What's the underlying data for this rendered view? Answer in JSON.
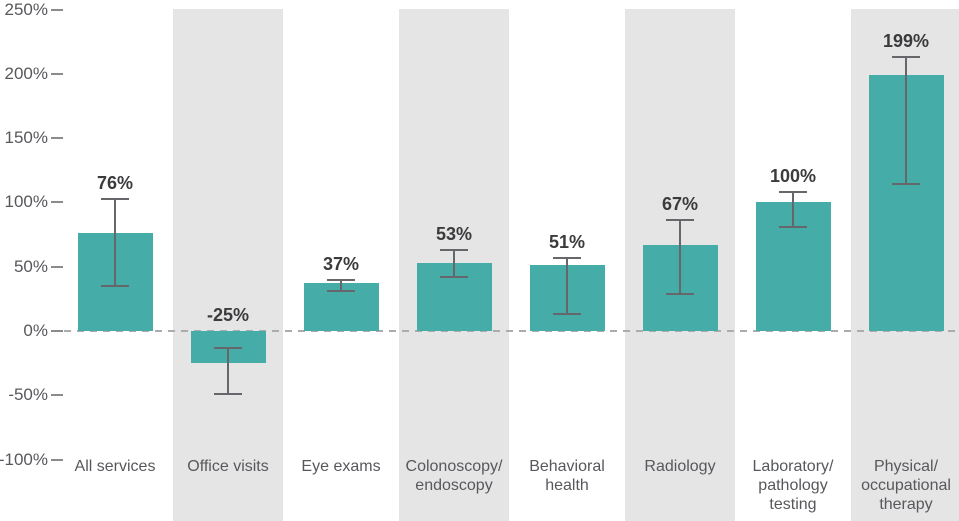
{
  "chart_data": {
    "type": "bar",
    "title": "",
    "xlabel": "",
    "ylabel": "",
    "unit": "%",
    "categories": [
      "All services",
      "Office visits",
      "Eye exams",
      "Colonoscopy/endoscopy",
      "Behavioral health",
      "Radiology",
      "Laboratory/pathology testing",
      "Physical/occupational therapy"
    ],
    "category_label_lines": [
      [
        "All services"
      ],
      [
        "Office visits"
      ],
      [
        "Eye exams"
      ],
      [
        "Colonoscopy/",
        "endoscopy"
      ],
      [
        "Behavioral",
        "health"
      ],
      [
        "Radiology"
      ],
      [
        "Laboratory/",
        "pathology",
        "testing"
      ],
      [
        "Physical/",
        "occupational",
        "therapy"
      ]
    ],
    "values": [
      76,
      -25,
      37,
      53,
      51,
      67,
      100,
      199
    ],
    "value_labels": [
      "76%",
      "-25%",
      "37%",
      "53%",
      "51%",
      "67%",
      "100%",
      "199%"
    ],
    "error_low": [
      35,
      -49,
      31,
      42,
      13,
      29,
      81,
      114
    ],
    "error_high": [
      103,
      -13,
      40,
      63,
      57,
      86,
      108,
      213
    ],
    "shaded_columns": [
      1,
      3,
      5,
      7
    ],
    "ylim": [
      -100,
      250
    ],
    "y_ticks": [
      250,
      200,
      150,
      100,
      50,
      0,
      -50,
      -100
    ],
    "y_tick_labels": [
      "250%",
      "200%",
      "150%",
      "100%",
      "50%",
      "0%",
      "-50%",
      "-100%"
    ],
    "grid": false,
    "legend": "none",
    "zero_baseline_style": "dashed",
    "colors": {
      "bar": "#46ACA8",
      "shaded_band": "#E5E5E6",
      "error_bar": "#66676A",
      "value_label_text": "#3B3B3D",
      "axis_text": "#57585B",
      "tick_mark": "#8A8B8E",
      "zero_line": "#ABACAE",
      "background": "#FFFFFF"
    }
  }
}
